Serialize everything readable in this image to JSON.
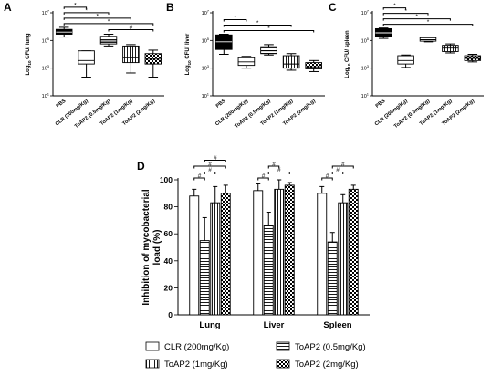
{
  "chart_data": [
    {
      "panel": "A",
      "type": "boxplot",
      "ylabel_pre": "Log",
      "ylabel_sub": "10",
      "ylabel_post": " CFU/ lung",
      "ytick_bases": [
        "10",
        "10",
        "10",
        "10"
      ],
      "ytick_exps": [
        "7",
        "5",
        "3",
        "1"
      ],
      "ytick_vals": [
        7,
        5,
        3,
        1
      ],
      "ylim": [
        1,
        7
      ],
      "categories": [
        "PBS",
        "CLR (200mg/Kg)",
        "ToAP2 (0.5mg/Kg)",
        "ToAP2 (1mg/Kg)",
        "ToAP2 (2mg/Kg)"
      ],
      "boxes": [
        {
          "min": 5.25,
          "q1": 5.45,
          "median": 5.6,
          "q3": 5.8,
          "max": 5.95,
          "fill": "solid"
        },
        {
          "min": 2.35,
          "q1": 3.3,
          "median": 3.55,
          "q3": 4.25,
          "max": 4.25,
          "fill": "open"
        },
        {
          "min": 4.6,
          "q1": 4.75,
          "median": 4.95,
          "q3": 5.3,
          "max": 5.45,
          "fill": "hlines"
        },
        {
          "min": 2.65,
          "q1": 3.4,
          "median": 3.75,
          "q3": 4.6,
          "max": 4.7,
          "fill": "vlines"
        },
        {
          "min": 2.35,
          "q1": 3.3,
          "median": 3.65,
          "q3": 4.05,
          "max": 4.3,
          "fill": "checker"
        }
      ],
      "significance": [
        {
          "from": 0,
          "to": 4,
          "label": "*"
        },
        {
          "from": 0,
          "to": 3,
          "label": "*"
        },
        {
          "from": 0,
          "to": 2,
          "label": "*"
        },
        {
          "from": 0,
          "to": 1,
          "label": "*"
        },
        {
          "from": 2,
          "to": 4,
          "label": "#"
        }
      ]
    },
    {
      "panel": "B",
      "type": "boxplot",
      "ylabel_pre": "Log",
      "ylabel_sub": "10",
      "ylabel_post": " CFU/ liver",
      "ytick_bases": [
        "10",
        "10",
        "10",
        "10"
      ],
      "ytick_exps": [
        "7",
        "5",
        "3",
        "1"
      ],
      "ytick_vals": [
        7,
        5,
        3,
        1
      ],
      "ylim": [
        1,
        7
      ],
      "categories": [
        "PBS",
        "CLR (200mg/Kg)",
        "ToAP2 (0.5mg/Kg)",
        "ToAP2 (1mg/Kg)",
        "ToAP2 (2mg/Kg)"
      ],
      "boxes": [
        {
          "min": 4.0,
          "q1": 4.35,
          "median": 4.9,
          "q3": 5.4,
          "max": 5.45,
          "fill": "solid"
        },
        {
          "min": 3.0,
          "q1": 3.2,
          "median": 3.45,
          "q3": 3.75,
          "max": 3.85,
          "fill": "open"
        },
        {
          "min": 3.95,
          "q1": 4.05,
          "median": 4.25,
          "q3": 4.55,
          "max": 4.7,
          "fill": "hlines"
        },
        {
          "min": 2.85,
          "q1": 3.0,
          "median": 3.3,
          "q3": 3.9,
          "max": 4.05,
          "fill": "vlines"
        },
        {
          "min": 2.75,
          "q1": 2.95,
          "median": 3.1,
          "q3": 3.4,
          "max": 3.55,
          "fill": "checker"
        }
      ],
      "significance": [
        {
          "from": 0,
          "to": 4,
          "label": "*"
        },
        {
          "from": 0,
          "to": 3,
          "label": "*"
        },
        {
          "from": 0,
          "to": 1,
          "label": "*"
        }
      ]
    },
    {
      "panel": "C",
      "type": "boxplot",
      "ylabel_pre": "Log",
      "ylabel_sub": "10",
      "ylabel_post": " CFU/ spleen",
      "ytick_bases": [
        "10",
        "10",
        "10",
        "10"
      ],
      "ytick_exps": [
        "7",
        "5",
        "3",
        "1"
      ],
      "ytick_vals": [
        7,
        5,
        3,
        1
      ],
      "ylim": [
        1,
        7
      ],
      "categories": [
        "PBS",
        "CLR (200mg/Kg)",
        "ToAP2 (0.5mg/Kg)",
        "ToAP2 (1mg/Kg)",
        "ToAP2 (2mg/Kg)"
      ],
      "boxes": [
        {
          "min": 5.15,
          "q1": 5.3,
          "median": 5.55,
          "q3": 5.85,
          "max": 5.9,
          "fill": "solid"
        },
        {
          "min": 3.05,
          "q1": 3.3,
          "median": 3.55,
          "q3": 3.9,
          "max": 3.95,
          "fill": "open"
        },
        {
          "min": 4.9,
          "q1": 4.95,
          "median": 5.05,
          "q3": 5.2,
          "max": 5.25,
          "fill": "hlines"
        },
        {
          "min": 4.1,
          "q1": 4.2,
          "median": 4.45,
          "q3": 4.65,
          "max": 4.75,
          "fill": "vlines"
        },
        {
          "min": 3.45,
          "q1": 3.55,
          "median": 3.7,
          "q3": 3.9,
          "max": 4.0,
          "fill": "checker"
        }
      ],
      "significance": [
        {
          "from": 0,
          "to": 4,
          "label": "*"
        },
        {
          "from": 0,
          "to": 3,
          "label": "*"
        },
        {
          "from": 0,
          "to": 2,
          "label": "*"
        },
        {
          "from": 0,
          "to": 1,
          "label": "*"
        }
      ]
    },
    {
      "panel": "D",
      "type": "bar",
      "ylabel_lines": [
        "Inhibition of mycobacterial",
        "load (%)"
      ],
      "ylim": [
        0,
        100
      ],
      "yticks": [
        0,
        20,
        40,
        60,
        80,
        100
      ],
      "categories": [
        "Lung",
        "Liver",
        "Spleen"
      ],
      "series": [
        {
          "name": "CLR (200mg/Kg)",
          "fill": "open",
          "values": [
            88,
            92,
            90
          ],
          "errors": [
            5,
            5,
            5
          ]
        },
        {
          "name": "ToAP2 (0.5mg/Kg)",
          "fill": "hlines",
          "values": [
            55,
            66,
            54
          ],
          "errors": [
            17,
            10,
            7
          ]
        },
        {
          "name": "ToAP2 (1mg/Kg)",
          "fill": "vlines",
          "values": [
            83,
            93,
            83
          ],
          "errors": [
            12,
            7,
            6
          ]
        },
        {
          "name": "ToAP2 (2mg/Kg)",
          "fill": "checker",
          "values": [
            90,
            96,
            93
          ],
          "errors": [
            6,
            2,
            3
          ]
        }
      ],
      "significance": [
        {
          "group": 0,
          "pairs": [
            [
              0,
              1,
              "#"
            ],
            [
              1,
              2,
              "#"
            ],
            [
              0,
              3,
              "#"
            ],
            [
              1,
              3,
              "#"
            ]
          ]
        },
        {
          "group": 1,
          "pairs": [
            [
              0,
              1,
              "#"
            ],
            [
              1,
              3,
              "#"
            ],
            [
              1,
              2,
              "#"
            ]
          ]
        },
        {
          "group": 2,
          "pairs": [
            [
              0,
              1,
              "#"
            ],
            [
              1,
              2,
              "#"
            ],
            [
              1,
              3,
              "#"
            ]
          ]
        }
      ],
      "legend_position": "bottom"
    }
  ]
}
